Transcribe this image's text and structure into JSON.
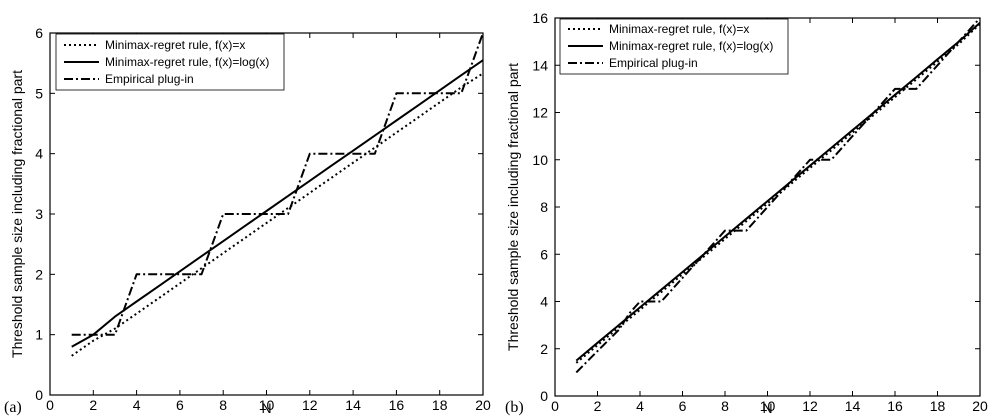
{
  "chart_data": [
    {
      "type": "line",
      "panel_label": "(a)",
      "xlabel": "N",
      "ylabel": "Threshold sample size including fractional part",
      "xlim": [
        0,
        20
      ],
      "ylim": [
        0,
        6
      ],
      "xticks": [
        0,
        2,
        4,
        6,
        8,
        10,
        12,
        14,
        16,
        18,
        20
      ],
      "yticks": [
        0,
        1,
        2,
        3,
        4,
        5,
        6
      ],
      "legend_position": "top-left",
      "series": [
        {
          "name": "Minimax-regret rule, f(x)=x",
          "style": "dotted",
          "x": [
            1,
            2,
            3,
            4,
            5,
            6,
            7,
            8,
            9,
            10,
            11,
            12,
            13,
            14,
            15,
            16,
            17,
            18,
            19,
            20
          ],
          "y": [
            0.65,
            0.9,
            1.1,
            1.35,
            1.6,
            1.85,
            2.1,
            2.35,
            2.6,
            2.85,
            3.1,
            3.35,
            3.6,
            3.85,
            4.1,
            4.35,
            4.6,
            4.85,
            5.1,
            5.33
          ]
        },
        {
          "name": "Minimax-regret rule, f(x)=log(x)",
          "style": "solid",
          "x": [
            1,
            2,
            3,
            4,
            5,
            6,
            7,
            8,
            9,
            10,
            11,
            12,
            13,
            14,
            15,
            16,
            17,
            18,
            19,
            20
          ],
          "y": [
            0.8,
            1.0,
            1.3,
            1.55,
            1.8,
            2.05,
            2.3,
            2.55,
            2.8,
            3.05,
            3.3,
            3.55,
            3.8,
            4.05,
            4.3,
            4.55,
            4.8,
            5.05,
            5.3,
            5.55
          ]
        },
        {
          "name": "Empirical plug-in",
          "style": "dashdot",
          "x": [
            1,
            2,
            3,
            4,
            5,
            6,
            7,
            8,
            9,
            10,
            11,
            12,
            13,
            14,
            15,
            16,
            17,
            18,
            19,
            20
          ],
          "y": [
            1,
            1,
            1,
            2,
            2,
            2,
            2,
            3,
            3,
            3,
            3,
            4,
            4,
            4,
            4,
            5,
            5,
            5,
            5,
            6
          ]
        }
      ]
    },
    {
      "type": "line",
      "panel_label": "(b)",
      "xlabel": "N",
      "ylabel": "Threshold sample size including fractional part",
      "xlim": [
        0,
        20
      ],
      "ylim": [
        0,
        16
      ],
      "xticks": [
        0,
        2,
        4,
        6,
        8,
        10,
        12,
        14,
        16,
        18,
        20
      ],
      "yticks": [
        0,
        2,
        4,
        6,
        8,
        10,
        12,
        14,
        16
      ],
      "legend_position": "top-left",
      "series": [
        {
          "name": "Minimax-regret rule, f(x)=x",
          "style": "dotted",
          "x": [
            1,
            2,
            3,
            4,
            5,
            6,
            7,
            8,
            9,
            10,
            11,
            12,
            13,
            14,
            15,
            16,
            17,
            18,
            19,
            20
          ],
          "y": [
            1.4,
            2.15,
            2.9,
            3.65,
            4.4,
            5.15,
            5.9,
            6.65,
            7.4,
            8.15,
            8.9,
            9.65,
            10.4,
            11.15,
            11.9,
            12.65,
            13.4,
            14.15,
            14.9,
            15.75
          ]
        },
        {
          "name": "Minimax-regret rule, f(x)=log(x)",
          "style": "solid",
          "x": [
            1,
            2,
            3,
            4,
            5,
            6,
            7,
            8,
            9,
            10,
            11,
            12,
            13,
            14,
            15,
            16,
            17,
            18,
            19,
            20
          ],
          "y": [
            1.5,
            2.25,
            3.0,
            3.75,
            4.5,
            5.25,
            6.0,
            6.75,
            7.5,
            8.25,
            9.0,
            9.75,
            10.5,
            11.25,
            12.0,
            12.75,
            13.5,
            14.25,
            15.0,
            15.8
          ]
        },
        {
          "name": "Empirical plug-in",
          "style": "dashdot",
          "x": [
            1,
            2,
            3,
            3.5,
            4,
            5,
            6,
            7,
            8,
            9,
            10,
            11,
            12,
            13,
            14,
            15,
            16,
            17,
            18,
            19,
            20
          ],
          "y": [
            1.0,
            1.9,
            2.8,
            3.5,
            4.0,
            4.0,
            5.0,
            6.0,
            7.0,
            7.0,
            8.0,
            9.0,
            10.0,
            10.0,
            11.0,
            12.0,
            13.0,
            13.0,
            14.0,
            15.0,
            16.0
          ]
        }
      ]
    }
  ]
}
